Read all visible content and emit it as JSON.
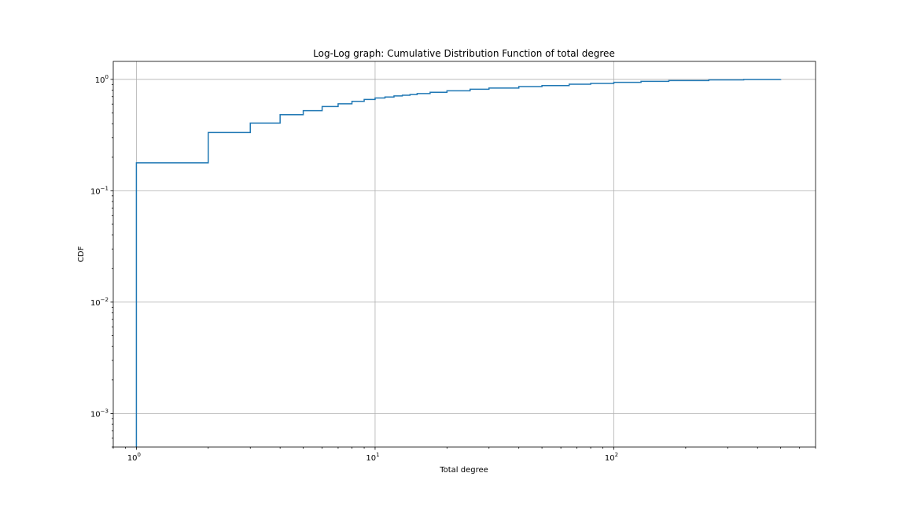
{
  "chart_data": {
    "type": "line",
    "title": "Log-Log graph: Cumulative Distribution Function of total degree",
    "xlabel": "Total degree",
    "ylabel": "CDF",
    "xscale": "log",
    "yscale": "log",
    "xlim": [
      0.8,
      700
    ],
    "ylim": [
      0.0005,
      1.45
    ],
    "grid": true,
    "line_color": "#1f77b4",
    "drawstyle": "steps-post",
    "x_ticks": [
      {
        "value": 1,
        "base": "10",
        "exp": "0"
      },
      {
        "value": 10,
        "base": "10",
        "exp": "1"
      },
      {
        "value": 100,
        "base": "10",
        "exp": "2"
      }
    ],
    "y_ticks": [
      {
        "value": 0.001,
        "base": "10",
        "exp": "−3"
      },
      {
        "value": 0.01,
        "base": "10",
        "exp": "−2"
      },
      {
        "value": 0.1,
        "base": "10",
        "exp": "−1"
      },
      {
        "value": 1,
        "base": "10",
        "exp": "0"
      }
    ],
    "series": [
      {
        "x": [
          1,
          1,
          2,
          3,
          4,
          5,
          6,
          7,
          8,
          9,
          10,
          11,
          12,
          13,
          14,
          15,
          17,
          20,
          25,
          30,
          40,
          50,
          65,
          80,
          100,
          130,
          170,
          250,
          350,
          500
        ],
        "y": [
          0.0005,
          0.178,
          0.333,
          0.405,
          0.482,
          0.523,
          0.57,
          0.603,
          0.635,
          0.66,
          0.68,
          0.695,
          0.71,
          0.72,
          0.73,
          0.745,
          0.765,
          0.79,
          0.815,
          0.835,
          0.862,
          0.88,
          0.905,
          0.92,
          0.94,
          0.96,
          0.975,
          0.99,
          0.998,
          1.0
        ]
      }
    ]
  }
}
